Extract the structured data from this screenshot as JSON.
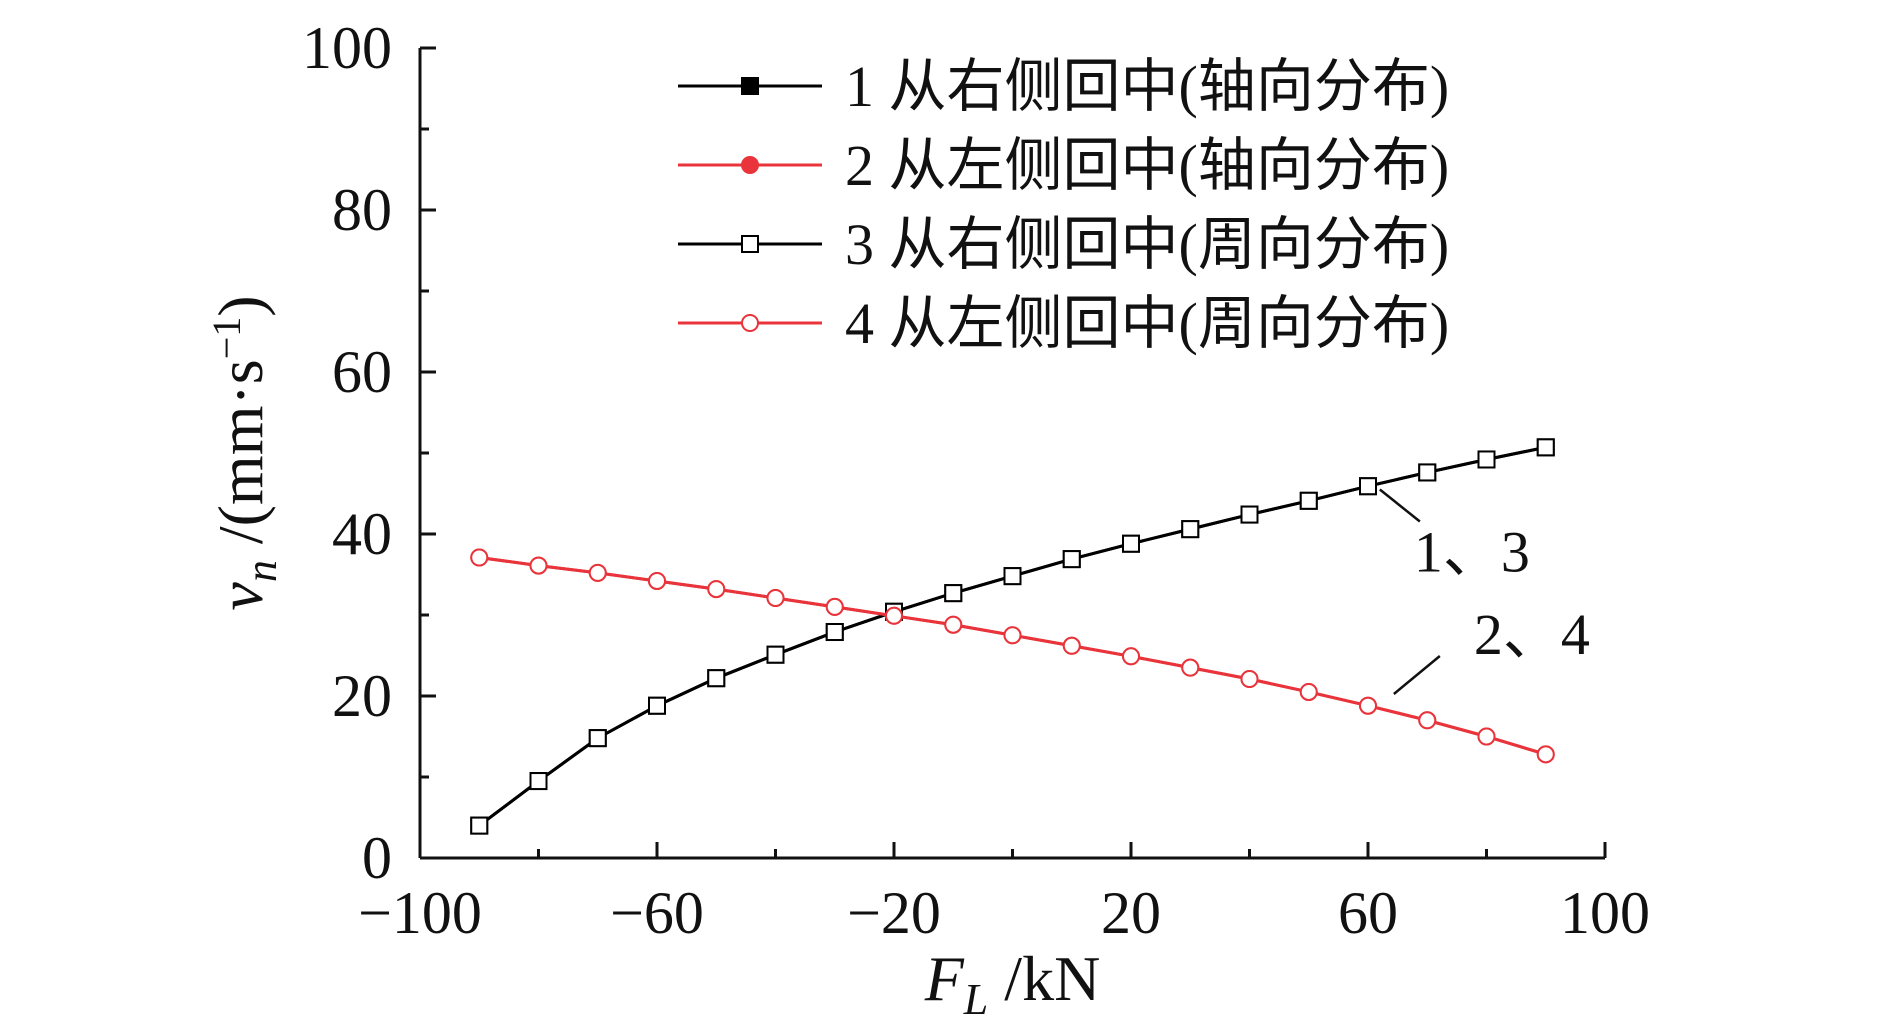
{
  "chart_data": {
    "type": "line",
    "xlabel": {
      "main": "F",
      "sub": "L",
      "unit": " /kN"
    },
    "ylabel": {
      "main": "v",
      "sub": "n",
      "unit": " /(mm·s",
      "exp": "−1",
      "close": ")"
    },
    "xlim": [
      -100,
      100
    ],
    "ylim": [
      0,
      100
    ],
    "xticks": [
      -100,
      -60,
      -20,
      20,
      60,
      100
    ],
    "yticks": [
      0,
      20,
      40,
      60,
      80,
      100
    ],
    "grid": false,
    "legend_position": "top-right",
    "x": [
      -90,
      -80,
      -70,
      -60,
      -50,
      -40,
      -30,
      -20,
      -10,
      0,
      10,
      20,
      30,
      40,
      50,
      60,
      70,
      80,
      90
    ],
    "series": [
      {
        "name": "1 从右侧回中(轴向分布)",
        "color": "#000000",
        "marker": "square-filled",
        "values": [
          4,
          9.5,
          14.8,
          18.8,
          22.2,
          25.1,
          27.9,
          30.4,
          32.7,
          34.8,
          36.9,
          38.8,
          40.6,
          42.4,
          44.1,
          45.9,
          47.6,
          49.2,
          50.7
        ]
      },
      {
        "name": "2 从左侧回中(轴向分布)",
        "color": "#e8343a",
        "marker": "circle-filled",
        "values": [
          37.1,
          36.1,
          35.2,
          34.2,
          33.2,
          32.1,
          31,
          29.9,
          28.8,
          27.5,
          26.2,
          24.9,
          23.5,
          22.1,
          20.5,
          18.8,
          17,
          15,
          12.8
        ]
      },
      {
        "name": "3 从右侧回中(周向分布)",
        "color": "#000000",
        "marker": "square-open",
        "values": [
          4,
          9.5,
          14.8,
          18.8,
          22.2,
          25.1,
          27.9,
          30.4,
          32.7,
          34.8,
          36.9,
          38.8,
          40.6,
          42.4,
          44.1,
          45.9,
          47.6,
          49.2,
          50.7
        ]
      },
      {
        "name": "4 从左侧回中(周向分布)",
        "color": "#e8343a",
        "marker": "circle-open",
        "values": [
          37.1,
          36.1,
          35.2,
          34.2,
          33.2,
          32.1,
          31,
          29.9,
          28.8,
          27.5,
          26.2,
          24.9,
          23.5,
          22.1,
          20.5,
          18.8,
          17,
          15,
          12.8
        ]
      }
    ],
    "annotations": [
      {
        "text": "1、3",
        "x": 62,
        "y": 45.0
      },
      {
        "text": "2、4",
        "x": 62,
        "y": 20.0
      }
    ]
  }
}
